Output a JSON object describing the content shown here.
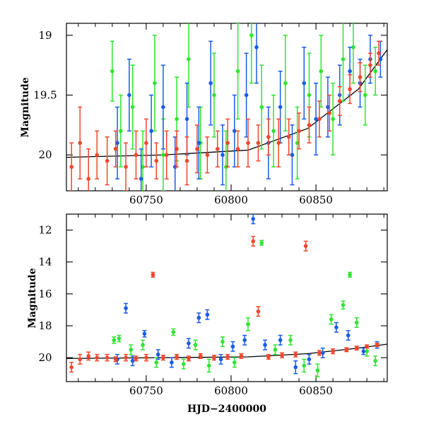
{
  "chart_data": [
    {
      "type": "scatter",
      "title": "",
      "xlabel": "",
      "ylabel": "Magnitude",
      "xlim": [
        60703,
        60892
      ],
      "ylim": [
        20.3,
        18.9
      ],
      "inverted_y": true,
      "xticks": [
        60750,
        60800,
        60850
      ],
      "xtick_labels": [
        "60750",
        "60800",
        "60850"
      ],
      "yticks": [
        19,
        19.5,
        20
      ],
      "ytick_labels": [
        "19",
        "19.5",
        "20"
      ],
      "grid": false,
      "legend": "none",
      "trend_line": {
        "x": [
          60703,
          60760,
          60810,
          60845,
          60875,
          60892
        ],
        "y": [
          20.02,
          20.0,
          19.96,
          19.78,
          19.45,
          19.12
        ]
      },
      "series": [
        {
          "color": "#2ee62e",
          "x": [
            60730,
            60735,
            60742,
            60748,
            60755,
            60760,
            60768,
            60775,
            60782,
            60790,
            60797,
            60804,
            60812,
            60818,
            60825,
            60832,
            60839,
            60846,
            60853,
            60860,
            60866,
            60872,
            60879,
            60885
          ],
          "y": [
            19.3,
            19.8,
            19.6,
            20.1,
            19.4,
            20.0,
            19.7,
            19.2,
            19.9,
            19.5,
            20.1,
            19.3,
            19.0,
            19.6,
            19.8,
            19.4,
            19.9,
            19.5,
            19.3,
            19.7,
            19.2,
            19.1,
            19.5,
            19.3
          ],
          "yerr": [
            0.25,
            0.3,
            0.35,
            0.3,
            0.4,
            0.3,
            0.35,
            0.4,
            0.3,
            0.35,
            0.3,
            0.4,
            0.4,
            0.35,
            0.3,
            0.4,
            0.3,
            0.35,
            0.3,
            0.3,
            0.35,
            0.3,
            0.25,
            0.2
          ]
        },
        {
          "color": "#1a5ce6",
          "x": [
            60733,
            60740,
            60747,
            60753,
            60760,
            60767,
            60774,
            60781,
            60788,
            60795,
            60802,
            60809,
            60815,
            60822,
            60829,
            60836,
            60843,
            60850,
            60857,
            60864,
            60870,
            60876,
            60882,
            60888
          ],
          "y": [
            19.9,
            19.5,
            20.2,
            19.8,
            19.6,
            20.1,
            19.7,
            19.9,
            19.4,
            20.0,
            19.8,
            19.5,
            19.1,
            19.9,
            19.6,
            20.0,
            19.4,
            19.7,
            19.6,
            19.5,
            19.3,
            19.4,
            19.2,
            19.2
          ],
          "yerr": [
            0.3,
            0.3,
            0.25,
            0.3,
            0.35,
            0.25,
            0.3,
            0.3,
            0.35,
            0.25,
            0.3,
            0.35,
            0.3,
            0.3,
            0.3,
            0.25,
            0.3,
            0.3,
            0.25,
            0.25,
            0.2,
            0.2,
            0.2,
            0.15
          ]
        },
        {
          "color": "#f0462d",
          "x": [
            60706,
            60711,
            60716,
            60721,
            60727,
            60732,
            60738,
            60744,
            60750,
            60756,
            60762,
            60768,
            60774,
            60780,
            60786,
            60792,
            60798,
            60804,
            60810,
            60816,
            60822,
            60828,
            60834,
            60840,
            60846,
            60852,
            60858,
            60864,
            60870,
            60876,
            60882,
            60887
          ],
          "y": [
            20.1,
            19.9,
            20.2,
            20.0,
            20.05,
            19.95,
            20.1,
            20.0,
            19.9,
            20.05,
            20.0,
            19.95,
            20.05,
            19.95,
            20.0,
            19.95,
            19.9,
            19.95,
            19.9,
            19.9,
            19.85,
            19.9,
            19.85,
            19.8,
            19.75,
            19.7,
            19.65,
            19.55,
            19.45,
            19.35,
            19.25,
            19.15
          ],
          "yerr": [
            0.2,
            0.3,
            0.25,
            0.2,
            0.2,
            0.15,
            0.2,
            0.2,
            0.2,
            0.15,
            0.2,
            0.15,
            0.2,
            0.2,
            0.15,
            0.15,
            0.2,
            0.15,
            0.2,
            0.15,
            0.15,
            0.2,
            0.15,
            0.15,
            0.15,
            0.15,
            0.15,
            0.12,
            0.12,
            0.12,
            0.1,
            0.1
          ]
        }
      ]
    },
    {
      "type": "scatter",
      "title": "",
      "xlabel": "HJD−2400000",
      "ylabel": "Magnitude",
      "xlim": [
        60703,
        60892
      ],
      "ylim": [
        21.5,
        11
      ],
      "inverted_y": true,
      "xticks": [
        60750,
        60800,
        60850
      ],
      "xtick_labels": [
        "60750",
        "60800",
        "60850"
      ],
      "yticks": [
        12,
        14,
        16,
        18,
        20
      ],
      "ytick_labels": [
        "12",
        "14",
        "16",
        "18",
        "20"
      ],
      "grid": false,
      "legend": "none",
      "trend_line": {
        "x": [
          60703,
          60760,
          60810,
          60845,
          60875,
          60892
        ],
        "y": [
          20.05,
          20.0,
          19.95,
          19.75,
          19.4,
          19.15
        ]
      },
      "series": [
        {
          "color": "#2ee62e",
          "x": [
            60731,
            60734,
            60741,
            60748,
            60756,
            60766,
            60772,
            60779,
            60787,
            60795,
            60802,
            60810,
            60818,
            60826,
            60835,
            60843,
            60851,
            60859,
            60866,
            60870,
            60874,
            60880,
            60885
          ],
          "y": [
            18.9,
            18.8,
            19.5,
            19.2,
            20.3,
            18.4,
            20.4,
            19.2,
            20.5,
            19.0,
            20.3,
            17.9,
            12.8,
            19.5,
            18.9,
            20.5,
            20.8,
            17.6,
            16.7,
            14.8,
            17.8,
            19.6,
            20.2
          ],
          "yerr": [
            0.2,
            0.2,
            0.3,
            0.3,
            0.3,
            0.2,
            0.3,
            0.3,
            0.4,
            0.3,
            0.3,
            0.4,
            0.15,
            0.3,
            0.3,
            0.4,
            0.4,
            0.3,
            0.25,
            0.15,
            0.3,
            0.3,
            0.3
          ]
        },
        {
          "color": "#1a5ce6",
          "x": [
            60733,
            60738,
            60742,
            60749,
            60757,
            60765,
            60775,
            60781,
            60786,
            60794,
            60801,
            60808,
            60813,
            60820,
            60829,
            60838,
            60846,
            60854,
            60862,
            60869,
            60878,
            60886
          ],
          "y": [
            20.1,
            16.9,
            20.2,
            18.5,
            19.8,
            20.3,
            19.1,
            17.5,
            17.3,
            20.1,
            19.3,
            18.9,
            11.3,
            19.2,
            18.9,
            20.6,
            20.1,
            19.7,
            18.1,
            18.6,
            19.6,
            19.2
          ],
          "yerr": [
            0.3,
            0.3,
            0.3,
            0.2,
            0.3,
            0.3,
            0.3,
            0.3,
            0.3,
            0.3,
            0.3,
            0.3,
            0.3,
            0.3,
            0.3,
            0.4,
            0.3,
            0.3,
            0.3,
            0.3,
            0.2,
            0.2
          ]
        },
        {
          "color": "#f0462d",
          "x": [
            60706,
            60711,
            60716,
            60721,
            60727,
            60732,
            60738,
            60744,
            60750,
            60754,
            60760,
            60768,
            60775,
            60782,
            60790,
            60798,
            60806,
            60813,
            60816,
            60822,
            60830,
            60838,
            60844,
            60852,
            60860,
            60868,
            60874,
            60880,
            60886
          ],
          "y": [
            20.6,
            20.1,
            19.9,
            20.0,
            20.0,
            20.1,
            20.0,
            20.05,
            20.0,
            14.8,
            20.0,
            19.95,
            20.05,
            19.9,
            20.0,
            19.95,
            19.9,
            12.7,
            17.1,
            19.95,
            19.85,
            19.8,
            13.0,
            19.7,
            19.6,
            19.5,
            19.4,
            19.3,
            19.2
          ],
          "yerr": [
            0.3,
            0.3,
            0.25,
            0.2,
            0.2,
            0.15,
            0.2,
            0.15,
            0.2,
            0.15,
            0.15,
            0.15,
            0.15,
            0.15,
            0.15,
            0.15,
            0.15,
            0.3,
            0.3,
            0.15,
            0.15,
            0.15,
            0.3,
            0.15,
            0.15,
            0.12,
            0.12,
            0.1,
            0.1
          ]
        }
      ]
    }
  ]
}
